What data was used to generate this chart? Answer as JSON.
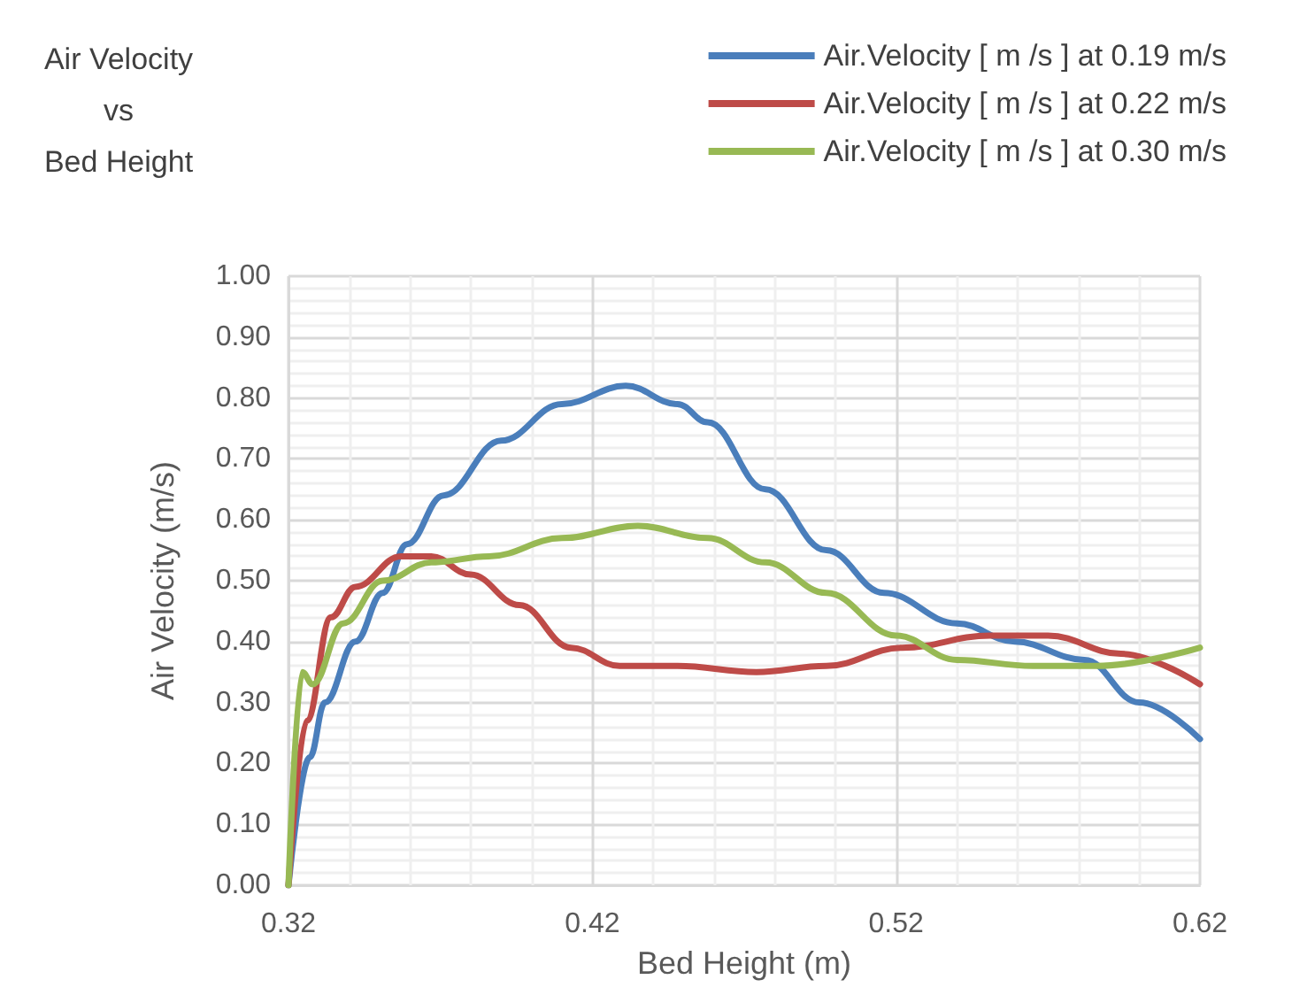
{
  "chart_data": {
    "type": "line",
    "title": "Air Velocity\nvs\nBed Height",
    "xlabel": "Bed Height (m)",
    "ylabel": "Air Velocity (m/s)",
    "xlim": [
      0.32,
      0.62
    ],
    "xticks": [
      0.32,
      0.42,
      0.52,
      0.62
    ],
    "ylim": [
      0,
      1
    ],
    "yticks": [
      {
        "value": 0,
        "label": "0.00"
      },
      {
        "value": 0.1,
        "label": "0.10"
      },
      {
        "value": 0.2,
        "label": "0.20"
      },
      {
        "value": 0.3,
        "label": "0.30"
      },
      {
        "value": 0.4,
        "label": "0.40"
      },
      {
        "value": 0.5,
        "label": "0.50"
      },
      {
        "value": 0.6,
        "label": "0.60"
      },
      {
        "value": 0.7,
        "label": "0.70"
      },
      {
        "value": 0.8,
        "label": "0.80"
      },
      {
        "value": 0.9,
        "label": "0.90"
      },
      {
        "value": 1,
        "label": "1.00"
      }
    ],
    "grid": true,
    "legend": "top right",
    "marker": "none",
    "line_style": "solid",
    "series": [
      {
        "name": "Air.Velocity [ m /s ] at 0.19 m/s",
        "color": "#4a7ebb",
        "x": [
          0.32,
          0.327,
          0.332,
          0.342,
          0.351,
          0.359,
          0.371,
          0.39,
          0.41,
          0.431,
          0.448,
          0.458,
          0.477,
          0.497,
          0.516,
          0.54,
          0.559,
          0.582,
          0.6,
          0.62
        ],
        "values": [
          0,
          0.21,
          0.3,
          0.4,
          0.48,
          0.56,
          0.64,
          0.73,
          0.79,
          0.82,
          0.79,
          0.76,
          0.65,
          0.55,
          0.48,
          0.43,
          0.4,
          0.37,
          0.3,
          0.24
        ]
      },
      {
        "name": "Air.Velocity [ m /s ] at 0.22 m/s",
        "color": "#be4b48",
        "x": [
          0.32,
          0.326,
          0.334,
          0.342,
          0.357,
          0.367,
          0.38,
          0.396,
          0.413,
          0.429,
          0.448,
          0.474,
          0.497,
          0.522,
          0.551,
          0.57,
          0.594,
          0.62
        ],
        "values": [
          0,
          0.27,
          0.44,
          0.49,
          0.54,
          0.54,
          0.51,
          0.46,
          0.39,
          0.36,
          0.36,
          0.35,
          0.36,
          0.39,
          0.41,
          0.41,
          0.38,
          0.33
        ]
      },
      {
        "name": "Air.Velocity [ m /s ] at 0.30 m/s",
        "color": "#98b954",
        "x": [
          0.32,
          0.3245,
          0.328,
          0.338,
          0.351,
          0.367,
          0.386,
          0.41,
          0.435,
          0.458,
          0.477,
          0.497,
          0.52,
          0.54,
          0.565,
          0.586,
          0.62
        ],
        "values": [
          0,
          0.35,
          0.33,
          0.43,
          0.5,
          0.53,
          0.54,
          0.57,
          0.59,
          0.57,
          0.53,
          0.48,
          0.41,
          0.37,
          0.36,
          0.36,
          0.39
        ]
      }
    ]
  }
}
